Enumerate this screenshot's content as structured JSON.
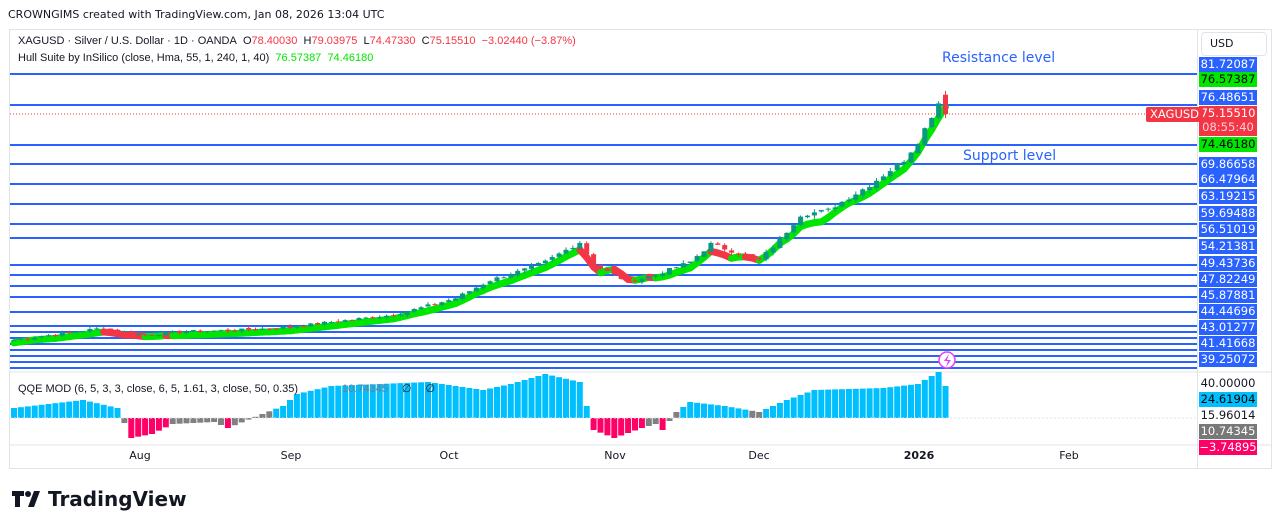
{
  "header": {
    "credit": "CROWNGIMS created with TradingView.com, Jan 08, 2026 13:04 UTC"
  },
  "legend": {
    "symbol": "XAGUSD · Silver / U.S. Dollar · 1D · OANDA",
    "o_label": "O",
    "o": "78.40030",
    "h_label": "H",
    "h": "79.03975",
    "l_label": "L",
    "l": "74.47330",
    "c_label": "C",
    "c": "75.15510",
    "change": "−3.02440 (−3.87%)",
    "hull_name": "Hull Suite by InSilico (close, Hma, 55, 1, 240, 1, 40)",
    "hull_v1": "76.57387",
    "hull_v2": "74.46180"
  },
  "qqe": {
    "name": "QQE MOD (6, 5, 3, 3, close, 6, 5, 1.61, 3, close, 50, 0.35)",
    "value": "10.74345",
    "na1": "∅",
    "na2": "∅"
  },
  "annotations": {
    "resistance": "Resistance level",
    "support": "Support level"
  },
  "price_axis": {
    "currency": "USD",
    "levels": [
      "81.72087",
      "76.48651",
      "69.86658",
      "66.47964",
      "63.19215",
      "59.69488",
      "56.51019",
      "54.21381",
      "49.43736",
      "47.82249",
      "45.87881",
      "44.44696",
      "43.01277",
      "41.41668",
      "39.25072"
    ],
    "hull_upper": "76.57387",
    "hull_lower": "74.46180",
    "symbol_tag": "XAGUSD",
    "last_price": "75.15510",
    "countdown": "08:55:40",
    "qqe_labels": {
      "top": "40.00000",
      "cyan": "24.61904",
      "plain": "15.96014",
      "gray": "10.74345",
      "red": "−3.74895"
    }
  },
  "time_axis": [
    "Aug",
    "Sep",
    "Oct",
    "Nov",
    "Dec",
    "2026",
    "Feb"
  ],
  "colors": {
    "level_line": "#2962ff",
    "up": "#089981",
    "down": "#f23645",
    "hull_up": "#00e600",
    "hull_down": "#f23645",
    "qqe_up": "#00bfff",
    "qqe_down": "#ff0066",
    "qqe_neutral": "#808080"
  },
  "brand": "TradingView",
  "chart_data": {
    "type": "candlestick",
    "approx_close_keypoints": [
      [
        0,
        37.2
      ],
      [
        13,
        39.2
      ],
      [
        19,
        38
      ],
      [
        25,
        38.6
      ],
      [
        32,
        38.8
      ],
      [
        40,
        39.3
      ],
      [
        46,
        40.2
      ],
      [
        55,
        41.4
      ],
      [
        59,
        42.6
      ],
      [
        64,
        44.2
      ],
      [
        69,
        47.2
      ],
      [
        74,
        49
      ],
      [
        77,
        50.3
      ],
      [
        80,
        52.3
      ],
      [
        82,
        53.6
      ],
      [
        78.5,
        0
      ],
      [
        84,
        49.8
      ],
      [
        89,
        47
      ],
      [
        93,
        48.1
      ],
      [
        98,
        50.3
      ],
      [
        95,
        0
      ],
      [
        101,
        53.3
      ],
      [
        108,
        50.6
      ],
      [
        111,
        54
      ],
      [
        114,
        58.2
      ],
      [
        118,
        59
      ],
      [
        124,
        63.2
      ],
      [
        129,
        67.4
      ],
      [
        131,
        70.5
      ],
      [
        127,
        0
      ],
      [
        135,
        79.2
      ],
      [
        136,
        72.5
      ],
      [
        131,
        0
      ],
      [
        139,
        74.2
      ],
      [
        141,
        80.9
      ],
      [
        135.5,
        0
      ]
    ],
    "qqe_keypoints": [
      [
        0,
        5
      ],
      [
        10,
        9
      ],
      [
        15,
        5
      ],
      [
        17,
        -10
      ],
      [
        20,
        -8
      ],
      [
        23,
        -3
      ],
      [
        29,
        -2
      ],
      [
        31,
        -5
      ],
      [
        36,
        2
      ],
      [
        39,
        6
      ],
      [
        41,
        12
      ],
      [
        46,
        16
      ],
      [
        60,
        18
      ],
      [
        68,
        14
      ],
      [
        72,
        17
      ],
      [
        77,
        22
      ],
      [
        82,
        18
      ],
      [
        84,
        -6
      ],
      [
        87,
        -10
      ],
      [
        91,
        -5
      ],
      [
        93,
        -3
      ],
      [
        94,
        -6
      ],
      [
        96,
        3
      ],
      [
        98,
        8
      ],
      [
        103,
        6
      ],
      [
        108,
        3
      ],
      [
        110,
        6
      ],
      [
        112,
        9
      ],
      [
        116,
        14
      ],
      [
        126,
        15
      ],
      [
        131,
        17
      ],
      [
        134,
        23
      ],
      [
        136,
        9
      ],
      [
        139,
        7
      ],
      [
        140,
        5
      ]
    ]
  }
}
